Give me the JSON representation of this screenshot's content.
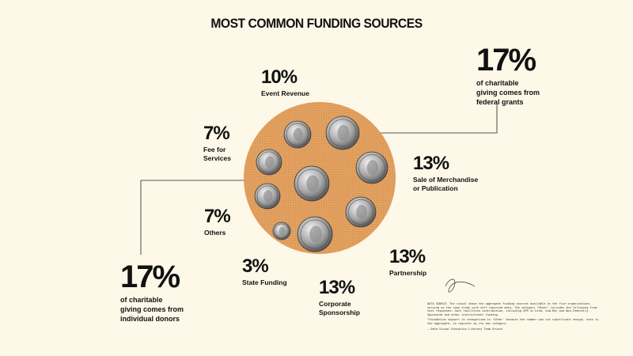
{
  "title": "MOST COMMON FUNDING SOURCES",
  "chart_data": {
    "type": "pie",
    "title": "MOST COMMON FUNDING SOURCES",
    "slices": [
      {
        "label": "Event Revenue",
        "value": 10
      },
      {
        "label": "Sale of Merchandise or Publication",
        "value": 13
      },
      {
        "label": "Partnership",
        "value": 13
      },
      {
        "label": "Corporate Sponsorship",
        "value": 13
      },
      {
        "label": "State Funding",
        "value": 3
      },
      {
        "label": "Others",
        "value": 7
      },
      {
        "label": "Fee for Services",
        "value": 7
      }
    ],
    "callouts": [
      {
        "value": "17%",
        "text": "of charitable giving comes from federal grants"
      },
      {
        "value": "17%",
        "text": "of charitable giving comes from individual donors"
      }
    ]
  },
  "labels": {
    "event": {
      "pct": "10%",
      "text": "Event Revenue"
    },
    "merch": {
      "pct": "13%",
      "line1": "Sale of Merchandise",
      "line2": "or Publication"
    },
    "partner": {
      "pct": "13%",
      "text": "Partnership"
    },
    "corp": {
      "pct": "13%",
      "line1": "Corporate",
      "line2": "Sponsorship"
    },
    "state": {
      "pct": "3%",
      "text": "State Funding"
    },
    "others": {
      "pct": "7%",
      "text": "Others"
    },
    "fee": {
      "pct": "7%",
      "line1": "Fee for",
      "line2": "Services"
    },
    "federal": {
      "pct": "17%",
      "line1": "of charitable",
      "line2": "giving comes from",
      "line3": "federal grants"
    },
    "donors": {
      "pct": "17%",
      "line1": "of charitable",
      "line2": "giving comes from",
      "line3": "individual donors"
    }
  },
  "note": {
    "p1": "DATA SOURCE: The visual shows the aggregate funding sources available to the five organizations serving as the case study with self-reported data. The category \"Other\" includes the following from text responses: Govt facilities contribution, including GPR in kind, Sub-Rec and Non-Federally Sponsored and other institutional funding.",
    "p2": "\"Foundation support is categorized in 'Other' because the number was not significant enough, even in the aggregate, to register as its own category",
    "p3": "— Data Visual Education Literacy Team Brunch"
  },
  "colors": {
    "background": "#fdf8e8",
    "circle": "#e3a262",
    "coin_light": "#e6e6e6",
    "coin_dark": "#6a6a6a",
    "line": "#222222"
  }
}
